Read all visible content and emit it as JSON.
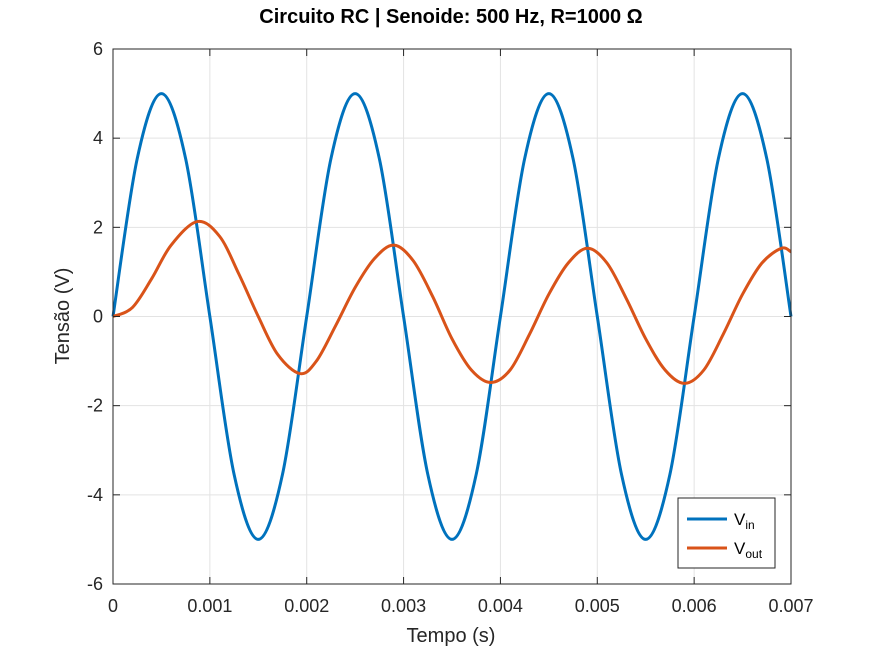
{
  "chart_data": {
    "type": "line",
    "title": "Circuito RC | Senoide: 500 Hz, R=1000 Ω",
    "xlabel": "Tempo (s)",
    "ylabel": "Tensão (V)",
    "xlim": [
      0,
      0.007
    ],
    "ylim": [
      -6,
      6
    ],
    "xticks": [
      0,
      0.001,
      0.002,
      0.003,
      0.004,
      0.005,
      0.006,
      0.007
    ],
    "xtick_labels": [
      "0",
      "0.001",
      "0.002",
      "0.003",
      "0.004",
      "0.005",
      "0.006",
      "0.007"
    ],
    "yticks": [
      -6,
      -4,
      -2,
      0,
      2,
      4,
      6
    ],
    "ytick_labels": [
      "-6",
      "-4",
      "-2",
      "0",
      "2",
      "4",
      "6"
    ],
    "grid": true,
    "legend_position": "bottom-right",
    "series": [
      {
        "name": "V",
        "name_sub": "in",
        "color": "#0072BD",
        "x": [
          0,
          0.00025,
          0.0005,
          0.00075,
          0.001,
          0.00125,
          0.0015,
          0.00175,
          0.002,
          0.00225,
          0.0025,
          0.00275,
          0.003,
          0.00325,
          0.0035,
          0.00375,
          0.004,
          0.00425,
          0.0045,
          0.00475,
          0.005,
          0.00525,
          0.0055,
          0.00575,
          0.006,
          0.00625,
          0.0065,
          0.00675,
          0.007
        ],
        "y": [
          0,
          3.54,
          5,
          3.54,
          0,
          -3.54,
          -5,
          -3.54,
          0,
          3.54,
          5,
          3.54,
          0,
          -3.54,
          -5,
          -3.54,
          0,
          3.54,
          5,
          3.54,
          0,
          -3.54,
          -5,
          -3.54,
          0,
          3.54,
          5,
          3.54,
          0
        ]
      },
      {
        "name": "V",
        "name_sub": "out",
        "color": "#D95319",
        "x": [
          0,
          0.0002,
          0.0004,
          0.0006,
          0.00087,
          0.0011,
          0.0013,
          0.0015,
          0.0017,
          0.00193,
          0.0021,
          0.0023,
          0.0025,
          0.0027,
          0.0029,
          0.0031,
          0.0033,
          0.0035,
          0.0037,
          0.0039,
          0.0041,
          0.0043,
          0.0045,
          0.0047,
          0.0049,
          0.0051,
          0.0053,
          0.0055,
          0.0057,
          0.0059,
          0.0061,
          0.0063,
          0.0065,
          0.0067,
          0.0069,
          0.007
        ],
        "y": [
          0,
          0.2,
          0.85,
          1.6,
          2.13,
          1.8,
          0.95,
          0.0,
          -0.85,
          -1.28,
          -1.0,
          -0.2,
          0.65,
          1.3,
          1.6,
          1.25,
          0.45,
          -0.5,
          -1.2,
          -1.48,
          -1.2,
          -0.4,
          0.5,
          1.2,
          1.53,
          1.2,
          0.4,
          -0.5,
          -1.2,
          -1.5,
          -1.2,
          -0.4,
          0.5,
          1.2,
          1.53,
          1.45
        ]
      }
    ]
  }
}
